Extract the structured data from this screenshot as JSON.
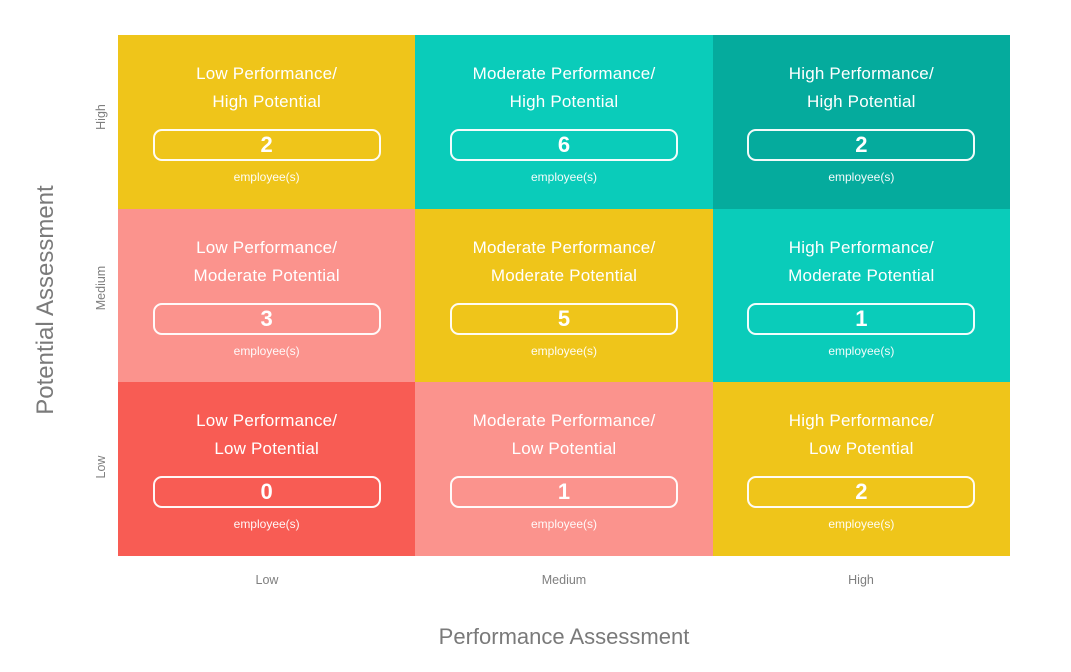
{
  "colors": {
    "yellow": "#EFC51A",
    "teal_light": "#0ACCBA",
    "teal_dark": "#05AB9D",
    "salmon": "#FB938D",
    "red": "#F85C54",
    "axis_text": "#7A7A7A",
    "cell_text": "#FFFFFF"
  },
  "axes": {
    "y_title": "Potential Assessment",
    "x_title": "Performance Assessment",
    "y_ticks": [
      "High",
      "Medium",
      "Low"
    ],
    "x_ticks": [
      "Low",
      "Medium",
      "High"
    ]
  },
  "unit_label": "employee(s)",
  "matrix": {
    "rows": [
      {
        "potential": "High",
        "cells": [
          {
            "title_line1": "Low Performance/",
            "title_line2": "High Potential",
            "count": "2",
            "bg": "#EFC51A"
          },
          {
            "title_line1": "Moderate Performance/",
            "title_line2": "High Potential",
            "count": "6",
            "bg": "#0ACCBA"
          },
          {
            "title_line1": "High Performance/",
            "title_line2": "High Potential",
            "count": "2",
            "bg": "#05AB9D"
          }
        ]
      },
      {
        "potential": "Medium",
        "cells": [
          {
            "title_line1": "Low Performance/",
            "title_line2": "Moderate Potential",
            "count": "3",
            "bg": "#FB938D"
          },
          {
            "title_line1": "Moderate Performance/",
            "title_line2": "Moderate Potential",
            "count": "5",
            "bg": "#EFC51A"
          },
          {
            "title_line1": "High Performance/",
            "title_line2": "Moderate Potential",
            "count": "1",
            "bg": "#0ACCBA"
          }
        ]
      },
      {
        "potential": "Low",
        "cells": [
          {
            "title_line1": "Low Performance/",
            "title_line2": "Low Potential",
            "count": "0",
            "bg": "#F85C54"
          },
          {
            "title_line1": "Moderate Performance/",
            "title_line2": "Low Potential",
            "count": "1",
            "bg": "#FB938D"
          },
          {
            "title_line1": "High Performance/",
            "title_line2": "Low Potential",
            "count": "2",
            "bg": "#EFC51A"
          }
        ]
      }
    ]
  },
  "chart_data": {
    "type": "heatmap",
    "title": "",
    "xlabel": "Performance Assessment",
    "ylabel": "Potential Assessment",
    "x_categories": [
      "Low",
      "Medium",
      "High"
    ],
    "y_categories": [
      "High",
      "Medium",
      "Low"
    ],
    "values": [
      [
        2,
        6,
        2
      ],
      [
        3,
        5,
        1
      ],
      [
        0,
        1,
        2
      ]
    ],
    "value_unit": "employee(s)",
    "cell_labels": [
      [
        "Low Performance/ High Potential",
        "Moderate Performance/ High Potential",
        "High Performance/ High Potential"
      ],
      [
        "Low Performance/ Moderate Potential",
        "Moderate Performance/ Moderate Potential",
        "High Performance/ Moderate Potential"
      ],
      [
        "Low Performance/ Low Potential",
        "Moderate Performance/ Low Potential",
        "High Performance/ Low Potential"
      ]
    ],
    "cell_colors": [
      [
        "#EFC51A",
        "#0ACCBA",
        "#05AB9D"
      ],
      [
        "#FB938D",
        "#EFC51A",
        "#0ACCBA"
      ],
      [
        "#F85C54",
        "#FB938D",
        "#EFC51A"
      ]
    ],
    "legend": "none",
    "grid": false
  }
}
